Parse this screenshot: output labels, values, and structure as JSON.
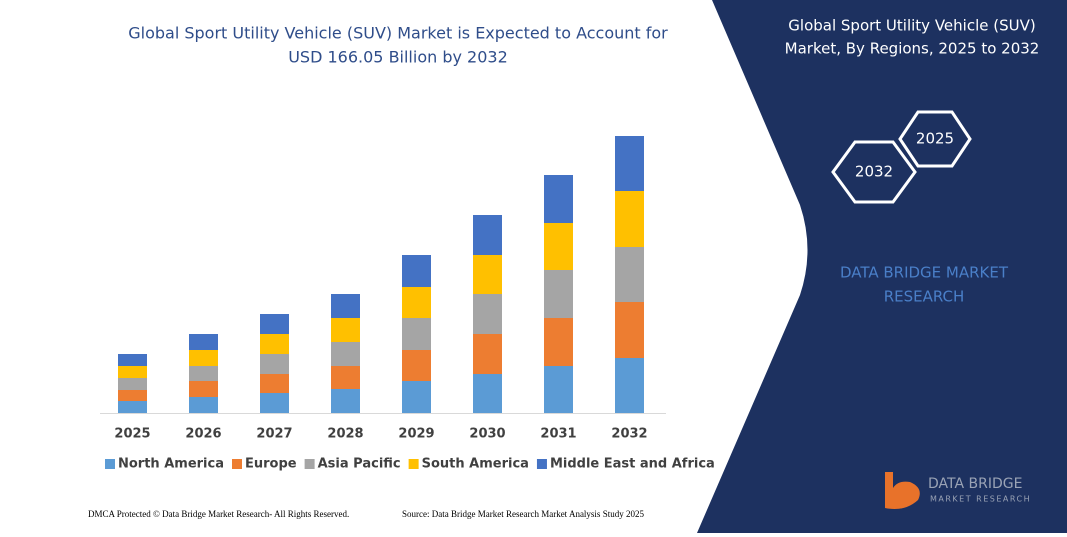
{
  "chart_data": {
    "type": "bar",
    "stacked": true,
    "title": [
      "Global Sport Utility Vehicle (SUV) Market is Expected to Account for",
      "USD 166.05 Billion by 2032"
    ],
    "categories": [
      "2025",
      "2026",
      "2027",
      "2028",
      "2029",
      "2030",
      "2031",
      "2032"
    ],
    "series": [
      {
        "name": "North America",
        "color": "#5b9bd5",
        "values": [
          12,
          16,
          20,
          24,
          32,
          39,
          47,
          55
        ]
      },
      {
        "name": "Europe",
        "color": "#ed7d31",
        "values": [
          11,
          16,
          19,
          23,
          31,
          40,
          48,
          56
        ]
      },
      {
        "name": "Asia Pacific",
        "color": "#a5a5a5",
        "values": [
          12,
          15,
          20,
          24,
          32,
          40,
          48,
          55
        ]
      },
      {
        "name": "South America",
        "color": "#ffc000",
        "values": [
          12,
          16,
          20,
          24,
          31,
          39,
          47,
          56
        ]
      },
      {
        "name": "Middle East and Africa",
        "color": "#4472c4",
        "values": [
          12,
          16,
          20,
          24,
          32,
          40,
          48,
          55
        ]
      }
    ]
  },
  "panel": {
    "title": [
      "Global Sport Utility Vehicle (SUV)",
      "Market, By Regions, 2025 to 2032"
    ],
    "hexagons": [
      "2032",
      "2025"
    ],
    "brand": [
      "DATA BRIDGE MARKET",
      "RESEARCH"
    ]
  },
  "logo": {
    "name": "DATA BRIDGE",
    "tagline": "MARKET RESEARCH"
  },
  "footer": {
    "left": "DMCA Protected © Data Bridge Market Research- All Rights Reserved.",
    "right": "Source: Data Bridge Market Research Market Analysis Study 2025"
  }
}
